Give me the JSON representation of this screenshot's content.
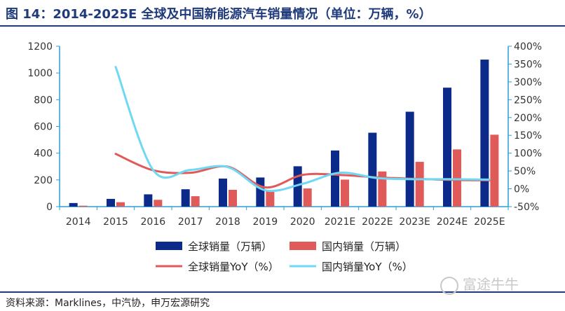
{
  "title": "图 14：2014-2025E 全球及中国新能源汽车销量情况（单位：万辆，%）",
  "source": "资料来源：Marklines，中汽协，申万宏源研究",
  "watermark": "富途牛牛",
  "colors": {
    "global_sales": "#0b2a8a",
    "china_sales": "#e05a5a",
    "global_yoy": "#e05a5a",
    "china_yoy": "#6ed8f5",
    "axis": "#2a9fd6",
    "title": "#1f3a7a"
  },
  "chart_data": {
    "type": "bar",
    "categories": [
      "2014",
      "2015",
      "2016",
      "2017",
      "2018",
      "2019",
      "2020",
      "2021E",
      "2022E",
      "2023E",
      "2024E",
      "2025E"
    ],
    "series": [
      {
        "name": "全球销量（万辆）",
        "kind": "bar",
        "axis": "left",
        "values": [
          27,
          58,
          92,
          130,
          210,
          218,
          302,
          420,
          553,
          710,
          890,
          1100
        ]
      },
      {
        "name": "国内销量（万辆）",
        "kind": "bar",
        "axis": "left",
        "values": [
          7,
          33,
          51,
          78,
          126,
          120,
          136,
          202,
          263,
          335,
          428,
          538
        ]
      },
      {
        "name": "全球销量YoY（%）",
        "kind": "line",
        "axis": "right",
        "values": [
          null,
          98,
          52,
          45,
          62,
          4,
          39,
          39,
          32,
          28,
          25,
          24
        ]
      },
      {
        "name": "国内销量YoY（%）",
        "kind": "line",
        "axis": "right",
        "values": [
          null,
          342,
          53,
          53,
          61,
          -4,
          14,
          45,
          30,
          27,
          27,
          26
        ]
      }
    ],
    "ylim_left": [
      0,
      1200
    ],
    "yticks_left": [
      "0",
      "200",
      "400",
      "600",
      "800",
      "1000",
      "1200"
    ],
    "ylim_right": [
      -50,
      400
    ],
    "yticks_right": [
      "-50%",
      "0%",
      "50%",
      "100%",
      "150%",
      "200%",
      "250%",
      "300%",
      "350%",
      "400%"
    ],
    "legend_position": "bottom",
    "grid": false
  }
}
